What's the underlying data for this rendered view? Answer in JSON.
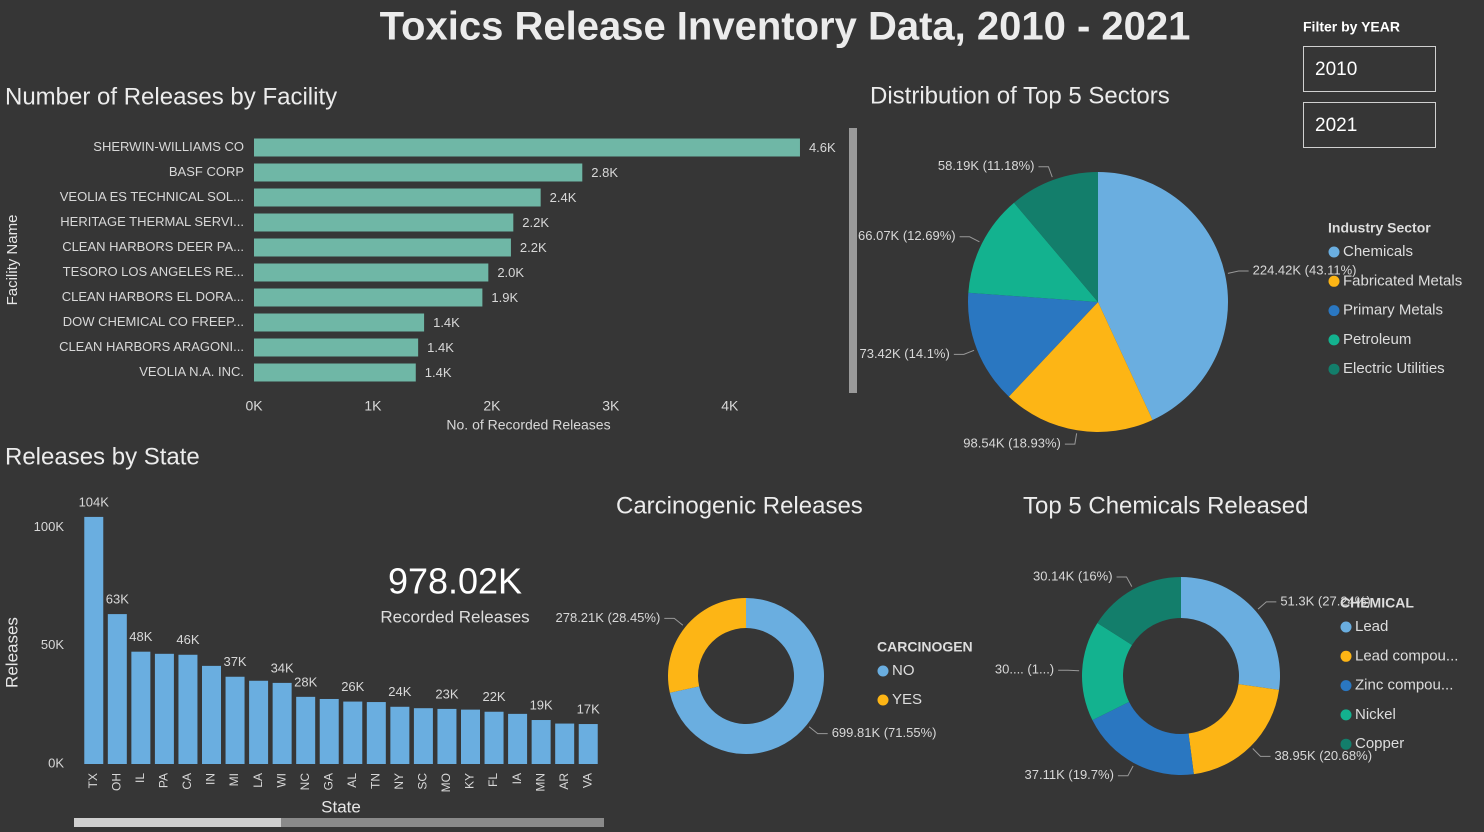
{
  "title": "Toxics Release Inventory Data, 2010 - 2021",
  "filter": {
    "label": "Filter by YEAR",
    "options": [
      "2010",
      "2021"
    ]
  },
  "kpi": {
    "value": "978.02K",
    "label": "Recorded Releases"
  },
  "chart_data": [
    {
      "type": "hbar",
      "title": "Number of Releases by Facility",
      "categories": [
        "SHERWIN-WILLIAMS CO",
        "BASF CORP",
        "VEOLIA ES TECHNICAL SOL...",
        "HERITAGE THERMAL SERVI...",
        "CLEAN HARBORS DEER PA...",
        "TESORO LOS ANGELES RE...",
        "CLEAN HARBORS EL DORA...",
        "DOW CHEMICAL CO FREEP...",
        "CLEAN HARBORS ARAGONI...",
        "VEOLIA N.A. INC."
      ],
      "values": [
        4590,
        2760,
        2410,
        2180,
        2160,
        1970,
        1920,
        1430,
        1380,
        1360
      ],
      "value_labels": [
        "4.6K",
        "2.8K",
        "2.4K",
        "2.2K",
        "2.2K",
        "2.0K",
        "1.9K",
        "1.4K",
        "1.4K",
        "1.4K"
      ],
      "color": "#6fb7a6",
      "xlim": [
        0,
        4750
      ],
      "xticks": [
        {
          "value": 0,
          "label": "0K"
        },
        {
          "value": 1000,
          "label": "1K"
        },
        {
          "value": 2000,
          "label": "2K"
        },
        {
          "value": 3000,
          "label": "3K"
        },
        {
          "value": 4000,
          "label": "4K"
        }
      ],
      "x_label": "No. of Recorded Releases",
      "y_label": "Facility Name"
    },
    {
      "type": "pie",
      "title": "Distribution of Top 5 Sectors",
      "legend_title": "Industry Sector",
      "categories": [
        "Chemicals",
        "Fabricated Metals",
        "Primary Metals",
        "Petroleum",
        "Electric Utilities"
      ],
      "values": [
        224420,
        98540,
        73420,
        66070,
        58190
      ],
      "value_labels": [
        "224.42K (43.11%)",
        "98.54K (18.93%)",
        "73.42K (14.1%)",
        "66.07K (12.69%)",
        "58.19K (11.18%)"
      ],
      "colors": [
        "#6aaee0",
        "#fdb515",
        "#2a77c1",
        "#13b28f",
        "#137e6b"
      ]
    },
    {
      "type": "bar",
      "title": "Releases by State",
      "categories": [
        "TX",
        "OH",
        "IL",
        "PA",
        "CA",
        "IN",
        "MI",
        "LA",
        "WI",
        "NC",
        "GA",
        "AL",
        "TN",
        "NY",
        "SC",
        "MO",
        "KY",
        "FL",
        "IA",
        "MN",
        "AR",
        "VA"
      ],
      "values": [
        104500,
        63400,
        47500,
        46600,
        46200,
        41500,
        36900,
        35200,
        34300,
        28400,
        27500,
        26400,
        26200,
        24200,
        23600,
        23300,
        23000,
        22100,
        21200,
        18600,
        17100,
        16900
      ],
      "value_labels": [
        "104K",
        "63K",
        "48K",
        null,
        "46K",
        null,
        "37K",
        null,
        "34K",
        "28K",
        null,
        "26K",
        null,
        "24K",
        null,
        "23K",
        null,
        "22K",
        null,
        "19K",
        null,
        "17K"
      ],
      "color": "#6aaee0",
      "ylim": [
        0,
        107000
      ],
      "yticks": [
        {
          "value": 0,
          "label": "0K"
        },
        {
          "value": 50000,
          "label": "50K"
        },
        {
          "value": 100000,
          "label": "100K"
        }
      ],
      "x_label": "State",
      "y_label": "Releases"
    },
    {
      "type": "donut",
      "title": "Carcinogenic Releases",
      "legend_title": "CARCINOGEN",
      "categories": [
        "NO",
        "YES"
      ],
      "values": [
        699810,
        278210
      ],
      "value_labels": [
        "699.81K (71.55%)",
        "278.21K (28.45%)"
      ],
      "colors": [
        "#6aaee0",
        "#fdb515"
      ]
    },
    {
      "type": "donut",
      "title": "Top 5 Chemicals Released",
      "legend_title": "CHEMICAL",
      "categories": [
        "Lead",
        "Lead compou...",
        "Zinc compou...",
        "Nickel",
        "Copper"
      ],
      "values": [
        51300,
        38950,
        37110,
        30800,
        30140
      ],
      "value_labels": [
        "51.3K (27.24%)",
        "38.95K (20.68%)",
        "37.11K (19.7%)",
        "30.... (1...)",
        "30.14K (16%)"
      ],
      "colors": [
        "#6aaee0",
        "#fdb515",
        "#2a77c1",
        "#13b28f",
        "#137e6b"
      ]
    }
  ]
}
